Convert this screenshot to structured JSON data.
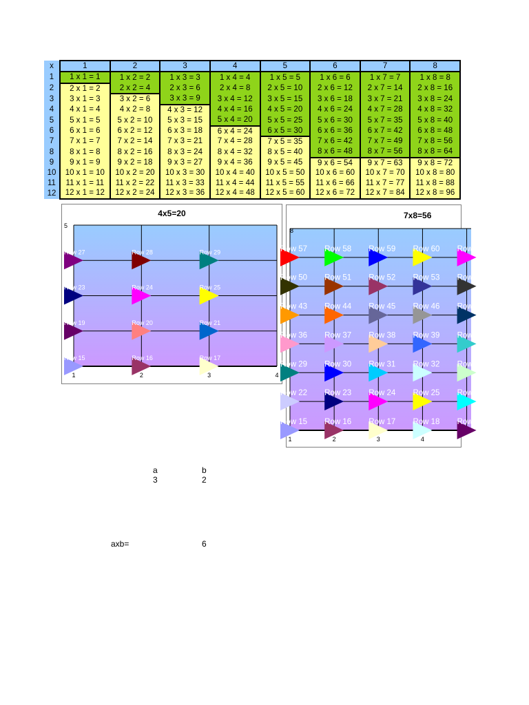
{
  "table": {
    "corner": "x",
    "columns": [
      "1",
      "2",
      "3",
      "4",
      "5",
      "6",
      "7",
      "8"
    ],
    "rows": [
      "1",
      "2",
      "3",
      "4",
      "5",
      "6",
      "7",
      "8",
      "9",
      "10",
      "11",
      "12"
    ]
  },
  "charts": {
    "chart1": {
      "title": "4x5=20"
    },
    "chart2": {
      "title": "7x8=56"
    }
  },
  "chart_data": [
    {
      "type": "scatter",
      "title": "4x5=20",
      "xlim": [
        1,
        4
      ],
      "ylim": [
        1,
        5
      ],
      "x_ticks": [
        "1",
        "2",
        "3",
        "4"
      ],
      "y_ticks": [
        "5"
      ],
      "grid": true,
      "background": [
        "#99ccff",
        "#cc99ff"
      ],
      "points": [
        {
          "label": "Row 27",
          "x": 1,
          "y": 4,
          "color": "#800080"
        },
        {
          "label": "Row 28",
          "x": 2,
          "y": 4,
          "color": "#800000"
        },
        {
          "label": "Row 29",
          "x": 3,
          "y": 4,
          "color": "#008080"
        },
        {
          "label": "Row 23",
          "x": 1,
          "y": 3,
          "color": "#000080"
        },
        {
          "label": "Row 24",
          "x": 2,
          "y": 3,
          "color": "#ff00ff"
        },
        {
          "label": "Row 25",
          "x": 3,
          "y": 3,
          "color": "#ffff00"
        },
        {
          "label": "Row 19",
          "x": 1,
          "y": 2,
          "color": "#660066"
        },
        {
          "label": "Row 20",
          "x": 2,
          "y": 2,
          "color": "#ff8080"
        },
        {
          "label": "Row 21",
          "x": 3,
          "y": 2,
          "color": "#0066cc"
        },
        {
          "label": "Row 15",
          "x": 1,
          "y": 1,
          "color": "#9999ff"
        },
        {
          "label": "Row 16",
          "x": 2,
          "y": 1,
          "color": "#993366"
        },
        {
          "label": "Row 17",
          "x": 3,
          "y": 1,
          "color": "#ffffcc"
        }
      ]
    },
    {
      "type": "scatter",
      "title": "7x8=56",
      "xlim": [
        1,
        5.1
      ],
      "ylim": [
        1,
        8
      ],
      "x_ticks": [
        "1",
        "2",
        "3",
        "4"
      ],
      "y_ticks": [
        "8"
      ],
      "grid": true,
      "background": [
        "#99ccff",
        "#cc99ff"
      ],
      "points": [
        {
          "label": "Row 57",
          "x": 1,
          "y": 7,
          "color": "#ff0000"
        },
        {
          "label": "Row 58",
          "x": 2,
          "y": 7,
          "color": "#00ff00"
        },
        {
          "label": "Row 59",
          "x": 3,
          "y": 7,
          "color": "#0000ff"
        },
        {
          "label": "Row 60",
          "x": 4,
          "y": 7,
          "color": "#ffff00"
        },
        {
          "label": "Row",
          "x": 5,
          "y": 7,
          "color": "#ff00ff"
        },
        {
          "label": "Row 50",
          "x": 1,
          "y": 6,
          "color": "#333300"
        },
        {
          "label": "Row 51",
          "x": 2,
          "y": 6,
          "color": "#993300"
        },
        {
          "label": "Row 52",
          "x": 3,
          "y": 6,
          "color": "#993366"
        },
        {
          "label": "Row 53",
          "x": 4,
          "y": 6,
          "color": "#333399"
        },
        {
          "label": "Row",
          "x": 5,
          "y": 6,
          "color": "#333333"
        },
        {
          "label": "Row 43",
          "x": 1,
          "y": 5,
          "color": "#ff9900"
        },
        {
          "label": "Row 44",
          "x": 2,
          "y": 5,
          "color": "#ff6600"
        },
        {
          "label": "Row 45",
          "x": 3,
          "y": 5,
          "color": "#666699"
        },
        {
          "label": "Row 46",
          "x": 4,
          "y": 5,
          "color": "#969696"
        },
        {
          "label": "Row",
          "x": 5,
          "y": 5,
          "color": "#003366"
        },
        {
          "label": "Row 36",
          "x": 1,
          "y": 4,
          "color": "#ff99cc"
        },
        {
          "label": "Row 37",
          "x": 2,
          "y": 4,
          "color": "#cc99ff"
        },
        {
          "label": "Row 38",
          "x": 3,
          "y": 4,
          "color": "#ffcc99"
        },
        {
          "label": "Row 39",
          "x": 4,
          "y": 4,
          "color": "#3366ff"
        },
        {
          "label": "Row",
          "x": 5,
          "y": 4,
          "color": "#33cccc"
        },
        {
          "label": "Row 29",
          "x": 1,
          "y": 3,
          "color": "#008080"
        },
        {
          "label": "Row 30",
          "x": 2,
          "y": 3,
          "color": "#0000ff"
        },
        {
          "label": "Row 31",
          "x": 3,
          "y": 3,
          "color": "#00ccff"
        },
        {
          "label": "Row 32",
          "x": 4,
          "y": 3,
          "color": "#ccffff"
        },
        {
          "label": "Row",
          "x": 5,
          "y": 3,
          "color": "#ccffcc"
        },
        {
          "label": "Row 22",
          "x": 1,
          "y": 2,
          "color": "#ccccff"
        },
        {
          "label": "Row 23",
          "x": 2,
          "y": 2,
          "color": "#000080"
        },
        {
          "label": "Row 24",
          "x": 3,
          "y": 2,
          "color": "#ff00ff"
        },
        {
          "label": "Row 25",
          "x": 4,
          "y": 2,
          "color": "#ffff00"
        },
        {
          "label": "Row",
          "x": 5,
          "y": 2,
          "color": "#00ffff"
        },
        {
          "label": "Row 15",
          "x": 1,
          "y": 1,
          "color": "#9999ff"
        },
        {
          "label": "Row 16",
          "x": 2,
          "y": 1,
          "color": "#993366"
        },
        {
          "label": "Row 17",
          "x": 3,
          "y": 1,
          "color": "#ffffcc"
        },
        {
          "label": "Row 18",
          "x": 4,
          "y": 1,
          "color": "#ccffff"
        },
        {
          "label": "Row",
          "x": 5,
          "y": 1,
          "color": "#660066"
        }
      ]
    }
  ],
  "cells": {
    "a_label": "a",
    "b_label": "b",
    "a_value": "3",
    "b_value": "2",
    "axb_label": "axb=",
    "axb_value": "6"
  },
  "colors": {
    "header": "#99ccff",
    "highlight": "#8fd41a",
    "cell": "#ffff99"
  }
}
